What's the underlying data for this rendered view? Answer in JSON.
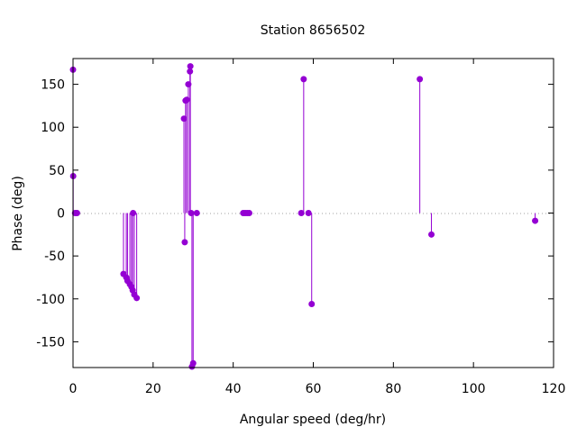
{
  "chart_data": {
    "type": "impulse",
    "title": "Station 8656502",
    "xlabel": "Angular speed (deg/hr)",
    "ylabel": "Phase (deg)",
    "xlim": [
      0,
      120
    ],
    "ylim": [
      -180,
      180
    ],
    "xticks": [
      0,
      20,
      40,
      60,
      80,
      100,
      120
    ],
    "yticks": [
      -150,
      -100,
      -50,
      0,
      50,
      100,
      150
    ],
    "grid": false,
    "zero_line": "dotted",
    "color": "#9400d3",
    "points": [
      {
        "x": 0.0,
        "y": 167
      },
      {
        "x": 0.04,
        "y": 43
      },
      {
        "x": 0.5,
        "y": 0
      },
      {
        "x": 0.8,
        "y": 0
      },
      {
        "x": 1.0,
        "y": 0
      },
      {
        "x": 12.6,
        "y": -71
      },
      {
        "x": 13.3,
        "y": -75
      },
      {
        "x": 13.6,
        "y": -79
      },
      {
        "x": 14.2,
        "y": -83
      },
      {
        "x": 14.6,
        "y": -86
      },
      {
        "x": 14.9,
        "y": -90
      },
      {
        "x": 15.0,
        "y": 0
      },
      {
        "x": 15.3,
        "y": -95
      },
      {
        "x": 15.9,
        "y": -99
      },
      {
        "x": 27.7,
        "y": 110
      },
      {
        "x": 27.9,
        "y": -34
      },
      {
        "x": 28.1,
        "y": 131
      },
      {
        "x": 28.4,
        "y": 132
      },
      {
        "x": 28.8,
        "y": 150
      },
      {
        "x": 29.2,
        "y": 165
      },
      {
        "x": 29.3,
        "y": 171
      },
      {
        "x": 29.5,
        "y": 0
      },
      {
        "x": 29.7,
        "y": -179
      },
      {
        "x": 30.0,
        "y": -175
      },
      {
        "x": 30.9,
        "y": 0
      },
      {
        "x": 42.5,
        "y": 0
      },
      {
        "x": 43.0,
        "y": 0
      },
      {
        "x": 43.5,
        "y": 0
      },
      {
        "x": 44.0,
        "y": 0
      },
      {
        "x": 57.0,
        "y": 0
      },
      {
        "x": 57.6,
        "y": 156
      },
      {
        "x": 58.8,
        "y": 0
      },
      {
        "x": 59.6,
        "y": -106
      },
      {
        "x": 86.6,
        "y": 156
      },
      {
        "x": 89.5,
        "y": -25
      },
      {
        "x": 115.4,
        "y": -9
      }
    ]
  }
}
